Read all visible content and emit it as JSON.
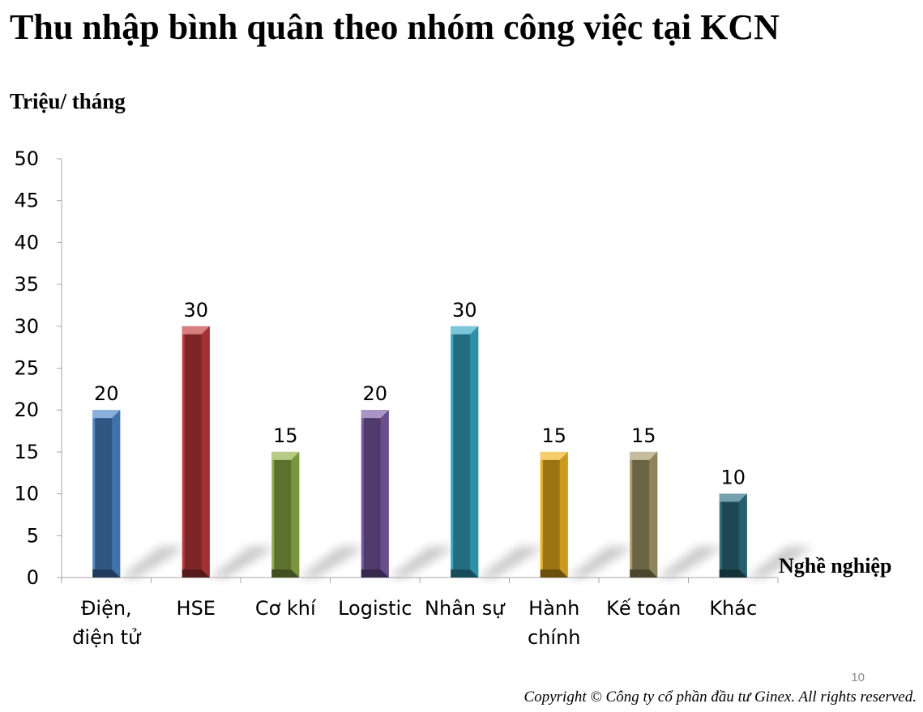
{
  "slide": {
    "page_number": "10",
    "copyright": "Copyright © Công ty cổ phần đầu tư Ginex. All rights reserved."
  },
  "chart_data": {
    "type": "bar",
    "title": "Thu nhập bình quân theo nhóm công việc tại KCN",
    "ylabel": "Triệu/ tháng",
    "xlabel": "Nghề nghiệp",
    "ylim": [
      0,
      50
    ],
    "yticks": [
      0,
      5,
      10,
      15,
      20,
      25,
      30,
      35,
      40,
      45,
      50
    ],
    "grid": false,
    "legend": "none",
    "categories": [
      [
        "Điện,",
        "điện tử"
      ],
      [
        "HSE"
      ],
      [
        "Cơ khí"
      ],
      [
        "Logistic"
      ],
      [
        "Nhân sự"
      ],
      [
        "Hành",
        "chính"
      ],
      [
        "Kế toán"
      ],
      [
        "Khác"
      ]
    ],
    "values": [
      20,
      30,
      15,
      20,
      30,
      15,
      15,
      10
    ],
    "colors": [
      "#4a86c8",
      "#c0393b",
      "#8fb044",
      "#7b5ca6",
      "#36a8c6",
      "#f0b41c",
      "#a89a6a",
      "#2c6f80"
    ]
  }
}
